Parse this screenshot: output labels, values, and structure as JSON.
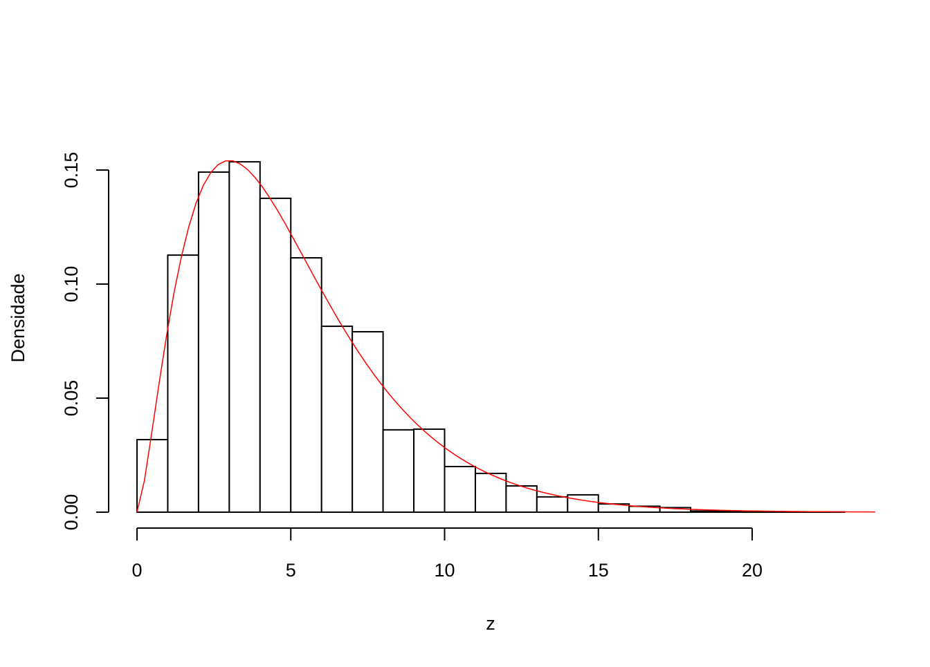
{
  "chart_data": {
    "type": "bar",
    "subtype": "histogram",
    "title": "",
    "xlabel": "z",
    "ylabel": "Densidade",
    "xlim": [
      0,
      24
    ],
    "ylim": [
      0,
      0.16
    ],
    "grid": false,
    "bin_edges": [
      0,
      1,
      2,
      3,
      4,
      5,
      6,
      7,
      8,
      9,
      10,
      11,
      12,
      13,
      14,
      15,
      16,
      17,
      18,
      19,
      20,
      21,
      22,
      23
    ],
    "values": [
      0.0318,
      0.1127,
      0.1491,
      0.1536,
      0.1376,
      0.1115,
      0.0815,
      0.0791,
      0.0361,
      0.0364,
      0.02,
      0.017,
      0.0115,
      0.0067,
      0.0076,
      0.0036,
      0.0026,
      0.002,
      0.0005,
      0.0003,
      0.0001,
      0.0001,
      0.0001
    ],
    "x_ticks": [
      "0",
      "5",
      "10",
      "15",
      "20"
    ],
    "x_tick_values": [
      0,
      5,
      10,
      15,
      20
    ],
    "y_ticks": [
      "0.00",
      "0.05",
      "0.10",
      "0.15"
    ],
    "y_tick_values": [
      0,
      0.05,
      0.1,
      0.15
    ],
    "curve": {
      "distribution": "chi-squared",
      "df": 5,
      "x_range": [
        0,
        24
      ],
      "color": "#ff0000"
    },
    "bar_fill": "#ffffff",
    "bar_stroke": "#000000"
  }
}
